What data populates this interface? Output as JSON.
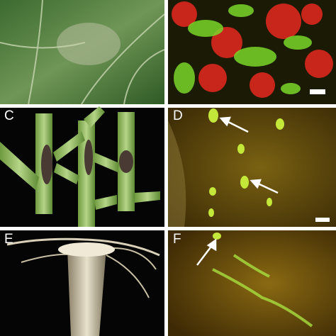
{
  "panels": [
    {
      "label": "C"
    },
    {
      "label": "D"
    },
    {
      "label": "E"
    },
    {
      "label": "F"
    }
  ]
}
